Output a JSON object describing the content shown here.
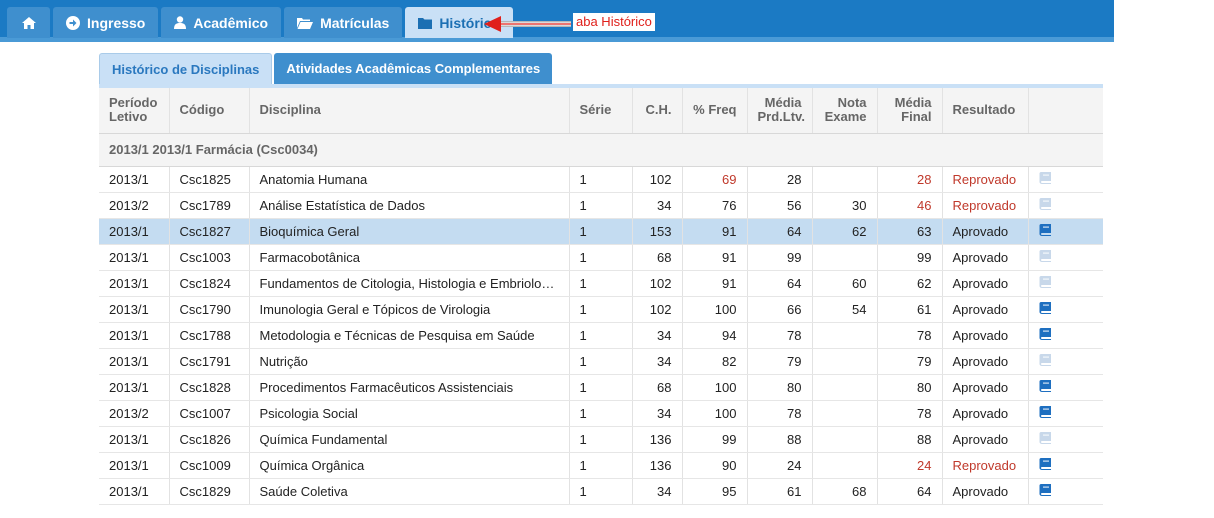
{
  "nav": {
    "tabs": [
      {
        "key": "home",
        "label": "",
        "icon": "home-icon"
      },
      {
        "key": "ingresso",
        "label": "Ingresso",
        "icon": "arrow-circle-right-icon"
      },
      {
        "key": "academico",
        "label": "Acadêmico",
        "icon": "user-icon"
      },
      {
        "key": "matriculas",
        "label": "Matrículas",
        "icon": "folder-open-icon"
      },
      {
        "key": "historico",
        "label": "Histórico",
        "icon": "folder-icon",
        "active": true
      }
    ]
  },
  "annotation": {
    "label": "aba Histórico",
    "color": "#e0201b"
  },
  "subtabs": [
    {
      "label": "Histórico de Disciplinas",
      "active": true
    },
    {
      "label": "Atividades Acadêmicas Complementares",
      "active": false
    }
  ],
  "table": {
    "headers": {
      "periodo": [
        "Período",
        "Letivo"
      ],
      "codigo": "Código",
      "disciplina": "Disciplina",
      "serie": "Série",
      "ch": "C.H.",
      "freq": "% Freq",
      "media_prd": [
        "Média",
        "Prd.Ltv."
      ],
      "nota_exame": [
        "Nota",
        "Exame"
      ],
      "media_final": [
        "Média",
        "Final"
      ],
      "resultado": "Resultado"
    },
    "group_label": "2013/1 2013/1 Farmácia (Csc0034)",
    "rows": [
      {
        "periodo": "2013/1",
        "codigo": "Csc1825",
        "disciplina": "Anatomia Humana",
        "serie": "1",
        "ch": "102",
        "freq": "69",
        "media_prd": "28",
        "nota_exame": "",
        "media_final": "28",
        "resultado": "Reprovado",
        "freq_red": true,
        "final_red": true,
        "fail": true,
        "book_active": false
      },
      {
        "periodo": "2013/2",
        "codigo": "Csc1789",
        "disciplina": "Análise Estatística de Dados",
        "serie": "1",
        "ch": "34",
        "freq": "76",
        "media_prd": "56",
        "nota_exame": "30",
        "media_final": "46",
        "resultado": "Reprovado",
        "freq_red": false,
        "final_red": true,
        "fail": true,
        "book_active": false
      },
      {
        "periodo": "2013/1",
        "codigo": "Csc1827",
        "disciplina": "Bioquímica Geral",
        "serie": "1",
        "ch": "153",
        "freq": "91",
        "media_prd": "64",
        "nota_exame": "62",
        "media_final": "63",
        "resultado": "Aprovado",
        "freq_red": false,
        "final_red": false,
        "fail": false,
        "book_active": true,
        "selected": true
      },
      {
        "periodo": "2013/1",
        "codigo": "Csc1003",
        "disciplina": "Farmacobotânica",
        "serie": "1",
        "ch": "68",
        "freq": "91",
        "media_prd": "99",
        "nota_exame": "",
        "media_final": "99",
        "resultado": "Aprovado",
        "freq_red": false,
        "final_red": false,
        "fail": false,
        "book_active": false
      },
      {
        "periodo": "2013/1",
        "codigo": "Csc1824",
        "disciplina": "Fundamentos de Citologia, Histologia e Embriologia",
        "serie": "1",
        "ch": "102",
        "freq": "91",
        "media_prd": "64",
        "nota_exame": "60",
        "media_final": "62",
        "resultado": "Aprovado",
        "freq_red": false,
        "final_red": false,
        "fail": false,
        "book_active": false
      },
      {
        "periodo": "2013/1",
        "codigo": "Csc1790",
        "disciplina": "Imunologia Geral e Tópicos de Virologia",
        "serie": "1",
        "ch": "102",
        "freq": "100",
        "media_prd": "66",
        "nota_exame": "54",
        "media_final": "61",
        "resultado": "Aprovado",
        "freq_red": false,
        "final_red": false,
        "fail": false,
        "book_active": true
      },
      {
        "periodo": "2013/1",
        "codigo": "Csc1788",
        "disciplina": "Metodologia e Técnicas de Pesquisa em Saúde",
        "serie": "1",
        "ch": "34",
        "freq": "94",
        "media_prd": "78",
        "nota_exame": "",
        "media_final": "78",
        "resultado": "Aprovado",
        "freq_red": false,
        "final_red": false,
        "fail": false,
        "book_active": true
      },
      {
        "periodo": "2013/1",
        "codigo": "Csc1791",
        "disciplina": "Nutrição",
        "serie": "1",
        "ch": "34",
        "freq": "82",
        "media_prd": "79",
        "nota_exame": "",
        "media_final": "79",
        "resultado": "Aprovado",
        "freq_red": false,
        "final_red": false,
        "fail": false,
        "book_active": false
      },
      {
        "periodo": "2013/1",
        "codigo": "Csc1828",
        "disciplina": "Procedimentos Farmacêuticos Assistenciais",
        "serie": "1",
        "ch": "68",
        "freq": "100",
        "media_prd": "80",
        "nota_exame": "",
        "media_final": "80",
        "resultado": "Aprovado",
        "freq_red": false,
        "final_red": false,
        "fail": false,
        "book_active": true
      },
      {
        "periodo": "2013/2",
        "codigo": "Csc1007",
        "disciplina": "Psicologia Social",
        "serie": "1",
        "ch": "34",
        "freq": "100",
        "media_prd": "78",
        "nota_exame": "",
        "media_final": "78",
        "resultado": "Aprovado",
        "freq_red": false,
        "final_red": false,
        "fail": false,
        "book_active": true
      },
      {
        "periodo": "2013/1",
        "codigo": "Csc1826",
        "disciplina": "Química Fundamental",
        "serie": "1",
        "ch": "136",
        "freq": "99",
        "media_prd": "88",
        "nota_exame": "",
        "media_final": "88",
        "resultado": "Aprovado",
        "freq_red": false,
        "final_red": false,
        "fail": false,
        "book_active": false
      },
      {
        "periodo": "2013/1",
        "codigo": "Csc1009",
        "disciplina": "Química Orgânica",
        "serie": "1",
        "ch": "136",
        "freq": "90",
        "media_prd": "24",
        "nota_exame": "",
        "media_final": "24",
        "resultado": "Reprovado",
        "freq_red": false,
        "final_red": true,
        "fail": true,
        "book_active": true
      },
      {
        "periodo": "2013/1",
        "codigo": "Csc1829",
        "disciplina": "Saúde Coletiva",
        "serie": "1",
        "ch": "34",
        "freq": "95",
        "media_prd": "61",
        "nota_exame": "68",
        "media_final": "64",
        "resultado": "Aprovado",
        "freq_red": false,
        "final_red": false,
        "fail": false,
        "book_active": true
      }
    ]
  },
  "colors": {
    "nav_blue": "#1b7ac4",
    "fail_red": "#c0392b",
    "book_active": "#1e6fc0",
    "book_inactive": "#c8d8ea",
    "selected_row": "#c4dcf1"
  }
}
